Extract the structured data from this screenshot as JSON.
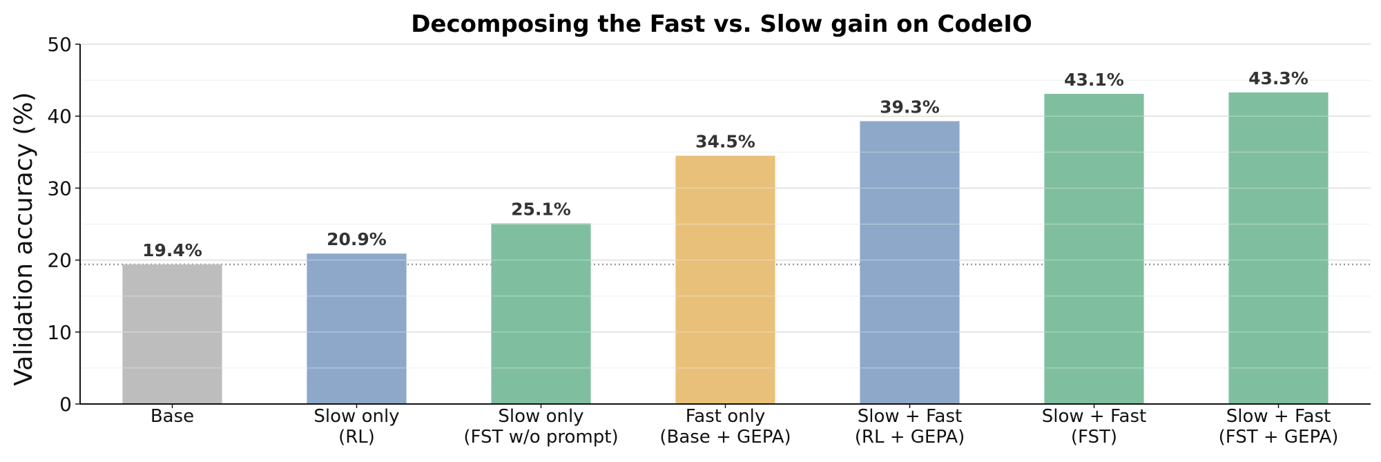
{
  "chart_data": {
    "type": "bar",
    "title": "Decomposing the Fast vs. Slow gain on CodeIO",
    "xlabel": "",
    "ylabel": "Validation accuracy (%)",
    "ylim": [
      0,
      50
    ],
    "yticks": [
      0,
      10,
      20,
      30,
      40,
      50
    ],
    "grid": true,
    "legend": "none",
    "reference_line": {
      "y": 19.4,
      "style": "dotted",
      "color": "#999999"
    },
    "categories": [
      [
        "Base"
      ],
      [
        "Slow only",
        "(RL)"
      ],
      [
        "Slow only",
        "(FST w/o prompt)"
      ],
      [
        "Fast only",
        "(Base + GEPA)"
      ],
      [
        "Slow + Fast",
        "(RL + GEPA)"
      ],
      [
        "Slow + Fast",
        "(FST)"
      ],
      [
        "Slow + Fast",
        "(FST + GEPA)"
      ]
    ],
    "values": [
      19.4,
      20.9,
      25.1,
      34.5,
      39.3,
      43.1,
      43.3
    ],
    "value_labels": [
      "19.4%",
      "20.9%",
      "25.1%",
      "34.5%",
      "39.3%",
      "43.1%",
      "43.3%"
    ],
    "colors": [
      "#bdbdbd",
      "#8ea8c9",
      "#7fbf9f",
      "#e8c07a",
      "#8ea8c9",
      "#7fbf9f",
      "#7fbf9f"
    ]
  }
}
